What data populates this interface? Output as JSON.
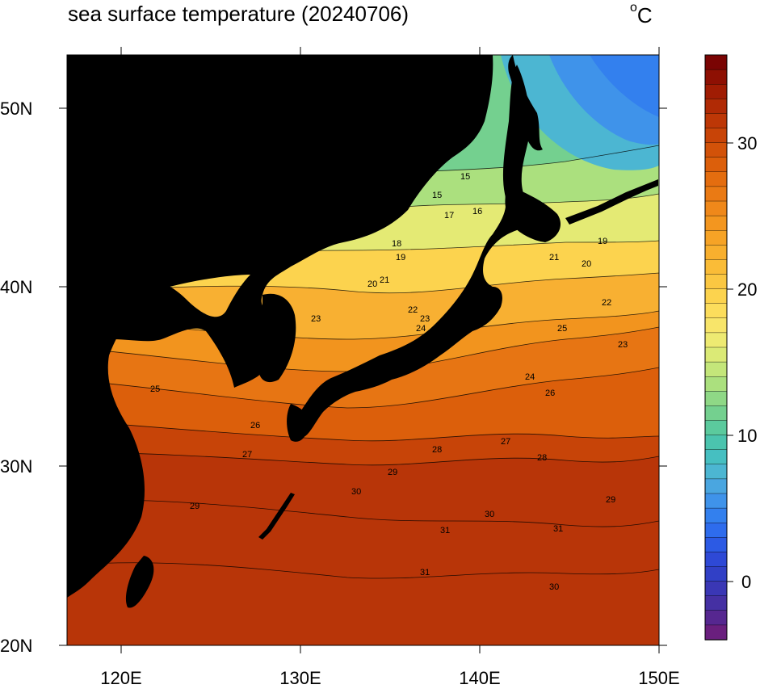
{
  "title": "sea surface temperature (20240706)",
  "unit": {
    "degree_symbol": "o",
    "letter": "C"
  },
  "map": {
    "lon_range": [
      117,
      150
    ],
    "lat_range": [
      20,
      53
    ],
    "lon_ticks": [
      "120E",
      "130E",
      "140E",
      "150E"
    ],
    "lat_ticks": [
      "50N",
      "40N",
      "30N",
      "20N"
    ],
    "land_color": "#000000"
  },
  "colorbar": {
    "tick_labels": [
      "30",
      "20",
      "10",
      "0"
    ],
    "min": -4,
    "max": 36,
    "colors": [
      "#7a0403",
      "#8e1003",
      "#a01c03",
      "#b02a05",
      "#bd3706",
      "#c84407",
      "#d25209",
      "#dc5f0b",
      "#e46d0f",
      "#ea7a14",
      "#ef881a",
      "#f3961f",
      "#f6a326",
      "#f8af2e",
      "#fabc37",
      "#fbc742",
      "#fcd34e",
      "#fcdd5c",
      "#f8e56a",
      "#eeea72",
      "#dbea76",
      "#c4e67a",
      "#abe07e",
      "#8fd886",
      "#74d08f",
      "#5bca9d",
      "#4bc4ae",
      "#46bfc1",
      "#4cb6d2",
      "#4aa6e0",
      "#3f93ea",
      "#3380ee",
      "#2e6ced",
      "#2c5ae4",
      "#2e49d6",
      "#3140c6",
      "#3a37b5",
      "#4530a3",
      "#562790",
      "#6a1f7e"
    ]
  },
  "contour_labels": [
    "15",
    "15",
    "16",
    "17",
    "18",
    "19",
    "20",
    "21",
    "22",
    "23",
    "24",
    "25",
    "26",
    "27",
    "28",
    "29",
    "30",
    "31",
    "19",
    "20",
    "21",
    "22",
    "23",
    "24",
    "25",
    "26",
    "27",
    "28",
    "29",
    "30",
    "31",
    "30",
    "29",
    "31",
    "23"
  ]
}
